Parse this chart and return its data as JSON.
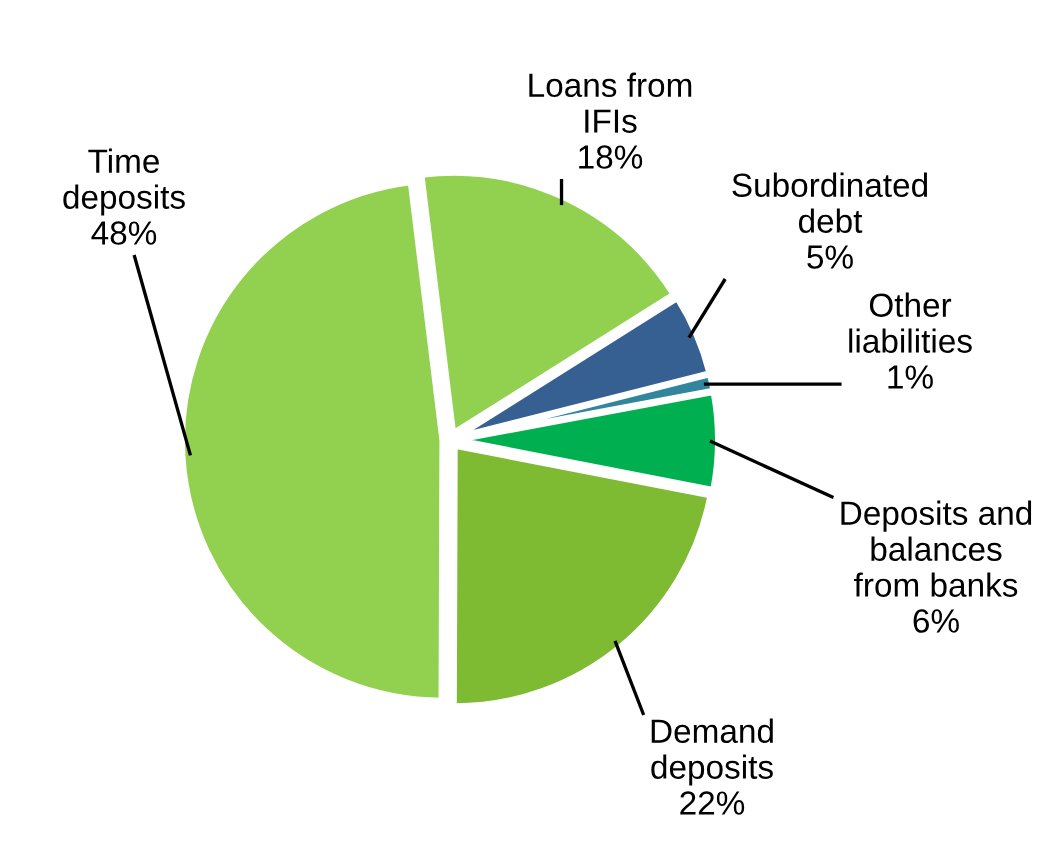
{
  "chart_data": {
    "type": "pie",
    "categories": [
      "Loans from\nIFIs",
      "Subordinated\ndebt",
      "Other\nliabilities",
      "Deposits and\nbalances\nfrom banks",
      "Demand\ndeposits",
      "Time\ndeposits"
    ],
    "values": [
      18,
      5,
      1,
      6,
      22,
      48
    ],
    "colors": [
      "#92d050",
      "#376092",
      "#31859c",
      "#00b050",
      "#7fba33",
      "#92d050"
    ],
    "value_labels": [
      "18%",
      "5%",
      "1%",
      "6%",
      "22%",
      "48%"
    ],
    "legend": false
  }
}
